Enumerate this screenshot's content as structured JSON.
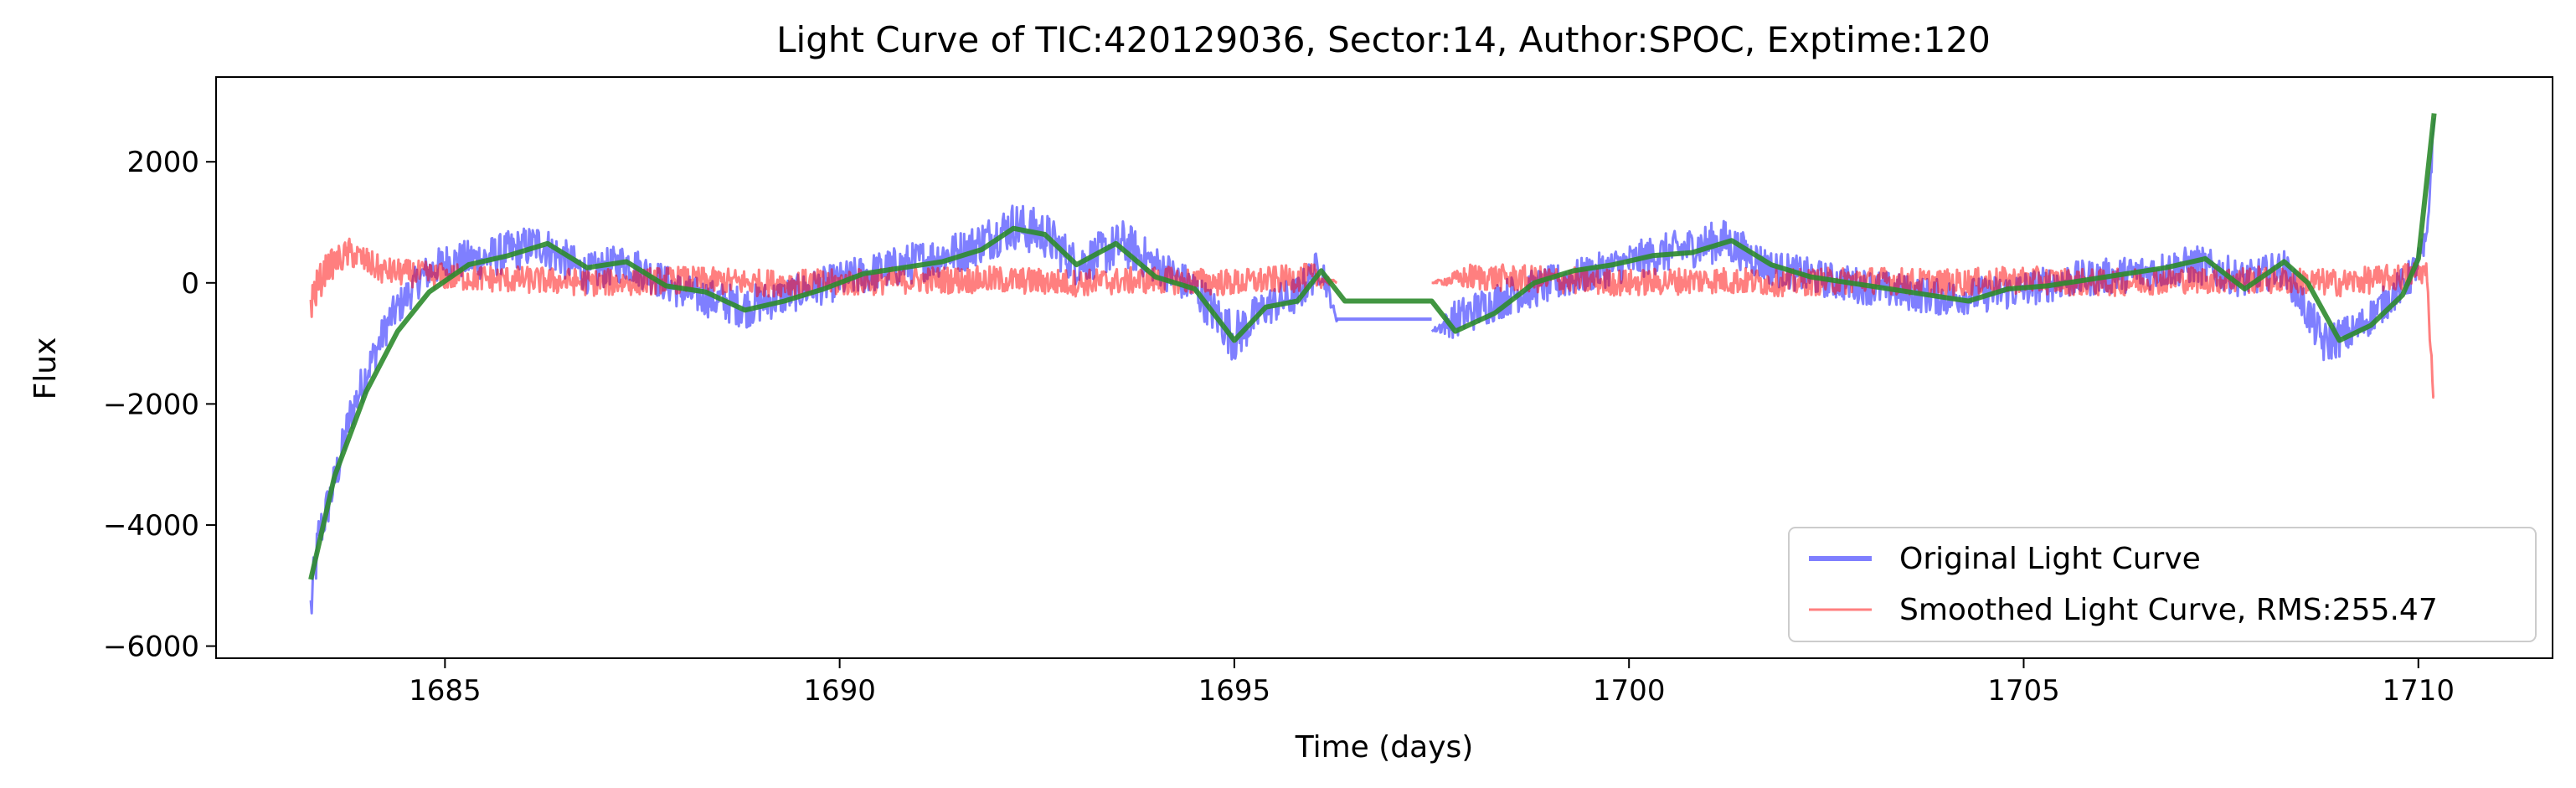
{
  "chart_data": {
    "type": "line",
    "title": "Light Curve of TIC:420129036, Sector:14, Author:SPOC, Exptime:120",
    "xlabel": "Time (days)",
    "ylabel": "Flux",
    "xlim": [
      1682.1,
      1711.7
    ],
    "ylim": [
      -6200,
      3400
    ],
    "xticks": [
      1685,
      1690,
      1695,
      1700,
      1705,
      1710
    ],
    "xtick_labels": [
      "1685",
      "1690",
      "1695",
      "1700",
      "1705",
      "1710"
    ],
    "yticks": [
      -6000,
      -4000,
      -2000,
      0,
      2000
    ],
    "ytick_labels": [
      "−6000",
      "−4000",
      "−2000",
      "0",
      "2000"
    ],
    "grid": false,
    "legend_position": "lower-right",
    "gap": [
      1696.3,
      1697.5
    ],
    "series": [
      {
        "name": "Original Light Curve",
        "color": "#0000ff",
        "opacity": 0.5,
        "style": "noisy-band",
        "x": [
          1683.3,
          1683.4,
          1683.6,
          1683.8,
          1684.0,
          1684.3,
          1684.7,
          1685.0,
          1685.5,
          1686.2,
          1686.8,
          1687.3,
          1688.0,
          1688.8,
          1689.5,
          1690.2,
          1691.0,
          1691.6,
          1692.2,
          1692.6,
          1693.0,
          1693.6,
          1694.0,
          1694.5,
          1695.0,
          1695.4,
          1695.8,
          1696.1,
          1696.3,
          1697.5,
          1697.8,
          1698.5,
          1699.5,
          1700.3,
          1701.2,
          1701.8,
          1702.5,
          1703.2,
          1704.0,
          1704.8,
          1705.6,
          1706.4,
          1707.2,
          1707.8,
          1708.3,
          1708.8,
          1709.2,
          1709.6,
          1709.9,
          1710.1,
          1710.2
        ],
        "y": [
          -5400,
          -4200,
          -3300,
          -2200,
          -1500,
          -600,
          100,
          350,
          400,
          650,
          150,
          350,
          -150,
          -400,
          -150,
          100,
          350,
          550,
          950,
          800,
          300,
          650,
          300,
          -100,
          -900,
          -400,
          -200,
          300,
          -650,
          -800,
          -600,
          -200,
          150,
          450,
          700,
          250,
          50,
          -100,
          -250,
          -150,
          50,
          150,
          300,
          50,
          250,
          -1000,
          -800,
          -300,
          100,
          600,
          2700
        ],
        "band": [
          1000,
          800,
          700,
          700,
          650,
          600,
          600,
          600,
          700,
          700,
          650,
          650,
          600,
          700,
          600,
          650,
          700,
          700,
          800,
          800,
          700,
          800,
          650,
          650,
          850,
          650,
          650,
          650,
          0,
          0,
          650,
          650,
          600,
          650,
          700,
          600,
          600,
          600,
          600,
          600,
          600,
          600,
          650,
          600,
          600,
          700,
          600,
          600,
          600,
          550,
          300
        ]
      },
      {
        "name": "Smoothed Light Curve, RMS:255.47",
        "color": "#ff0000",
        "opacity": 0.5,
        "style": "noisy-band",
        "x": [
          1683.3,
          1683.5,
          1683.8,
          1684.2,
          1685.0,
          1686.0,
          1687.0,
          1688.0,
          1689.0,
          1690.0,
          1691.0,
          1692.0,
          1693.0,
          1694.0,
          1695.0,
          1696.0,
          1696.3,
          1697.5,
          1698.0,
          1699.0,
          1700.0,
          1701.0,
          1702.0,
          1703.0,
          1704.0,
          1705.0,
          1706.0,
          1707.0,
          1708.0,
          1709.0,
          1709.8,
          1710.1,
          1710.2
        ],
        "y": [
          -300,
          250,
          500,
          200,
          100,
          50,
          0,
          50,
          0,
          0,
          50,
          50,
          0,
          50,
          0,
          100,
          0,
          0,
          100,
          50,
          0,
          50,
          0,
          50,
          0,
          50,
          0,
          50,
          50,
          0,
          100,
          200,
          -2000
        ],
        "band": [
          700,
          500,
          500,
          450,
          450,
          450,
          450,
          450,
          450,
          450,
          450,
          450,
          450,
          450,
          450,
          450,
          0,
          0,
          450,
          450,
          450,
          450,
          450,
          450,
          450,
          450,
          450,
          450,
          450,
          450,
          450,
          400,
          300
        ]
      },
      {
        "name": "",
        "color": "#2e8b2e",
        "opacity": 0.9,
        "style": "trend",
        "x": [
          1683.3,
          1683.6,
          1684.0,
          1684.4,
          1684.8,
          1685.3,
          1685.8,
          1686.3,
          1686.8,
          1687.3,
          1687.8,
          1688.3,
          1688.8,
          1689.3,
          1689.8,
          1690.3,
          1690.8,
          1691.3,
          1691.8,
          1692.2,
          1692.6,
          1693.0,
          1693.5,
          1694.0,
          1694.5,
          1695.0,
          1695.4,
          1695.8,
          1696.1,
          1696.4,
          1697.5,
          1697.8,
          1698.3,
          1698.8,
          1699.3,
          1699.8,
          1700.3,
          1700.8,
          1701.3,
          1701.8,
          1702.3,
          1702.8,
          1703.3,
          1703.8,
          1704.3,
          1704.8,
          1705.3,
          1705.8,
          1706.3,
          1706.8,
          1707.3,
          1707.8,
          1708.3,
          1708.6,
          1709.0,
          1709.4,
          1709.8,
          1710.0,
          1710.2
        ],
        "y": [
          -4900,
          -3200,
          -1800,
          -800,
          -150,
          300,
          450,
          650,
          250,
          350,
          -50,
          -150,
          -450,
          -300,
          -100,
          150,
          250,
          350,
          550,
          900,
          800,
          300,
          650,
          100,
          -100,
          -950,
          -400,
          -300,
          200,
          -300,
          -300,
          -800,
          -500,
          0,
          200,
          300,
          450,
          500,
          700,
          300,
          100,
          0,
          -100,
          -200,
          -300,
          -100,
          -50,
          50,
          150,
          250,
          400,
          -100,
          350,
          0,
          -950,
          -700,
          -200,
          400,
          2800
        ]
      }
    ]
  }
}
